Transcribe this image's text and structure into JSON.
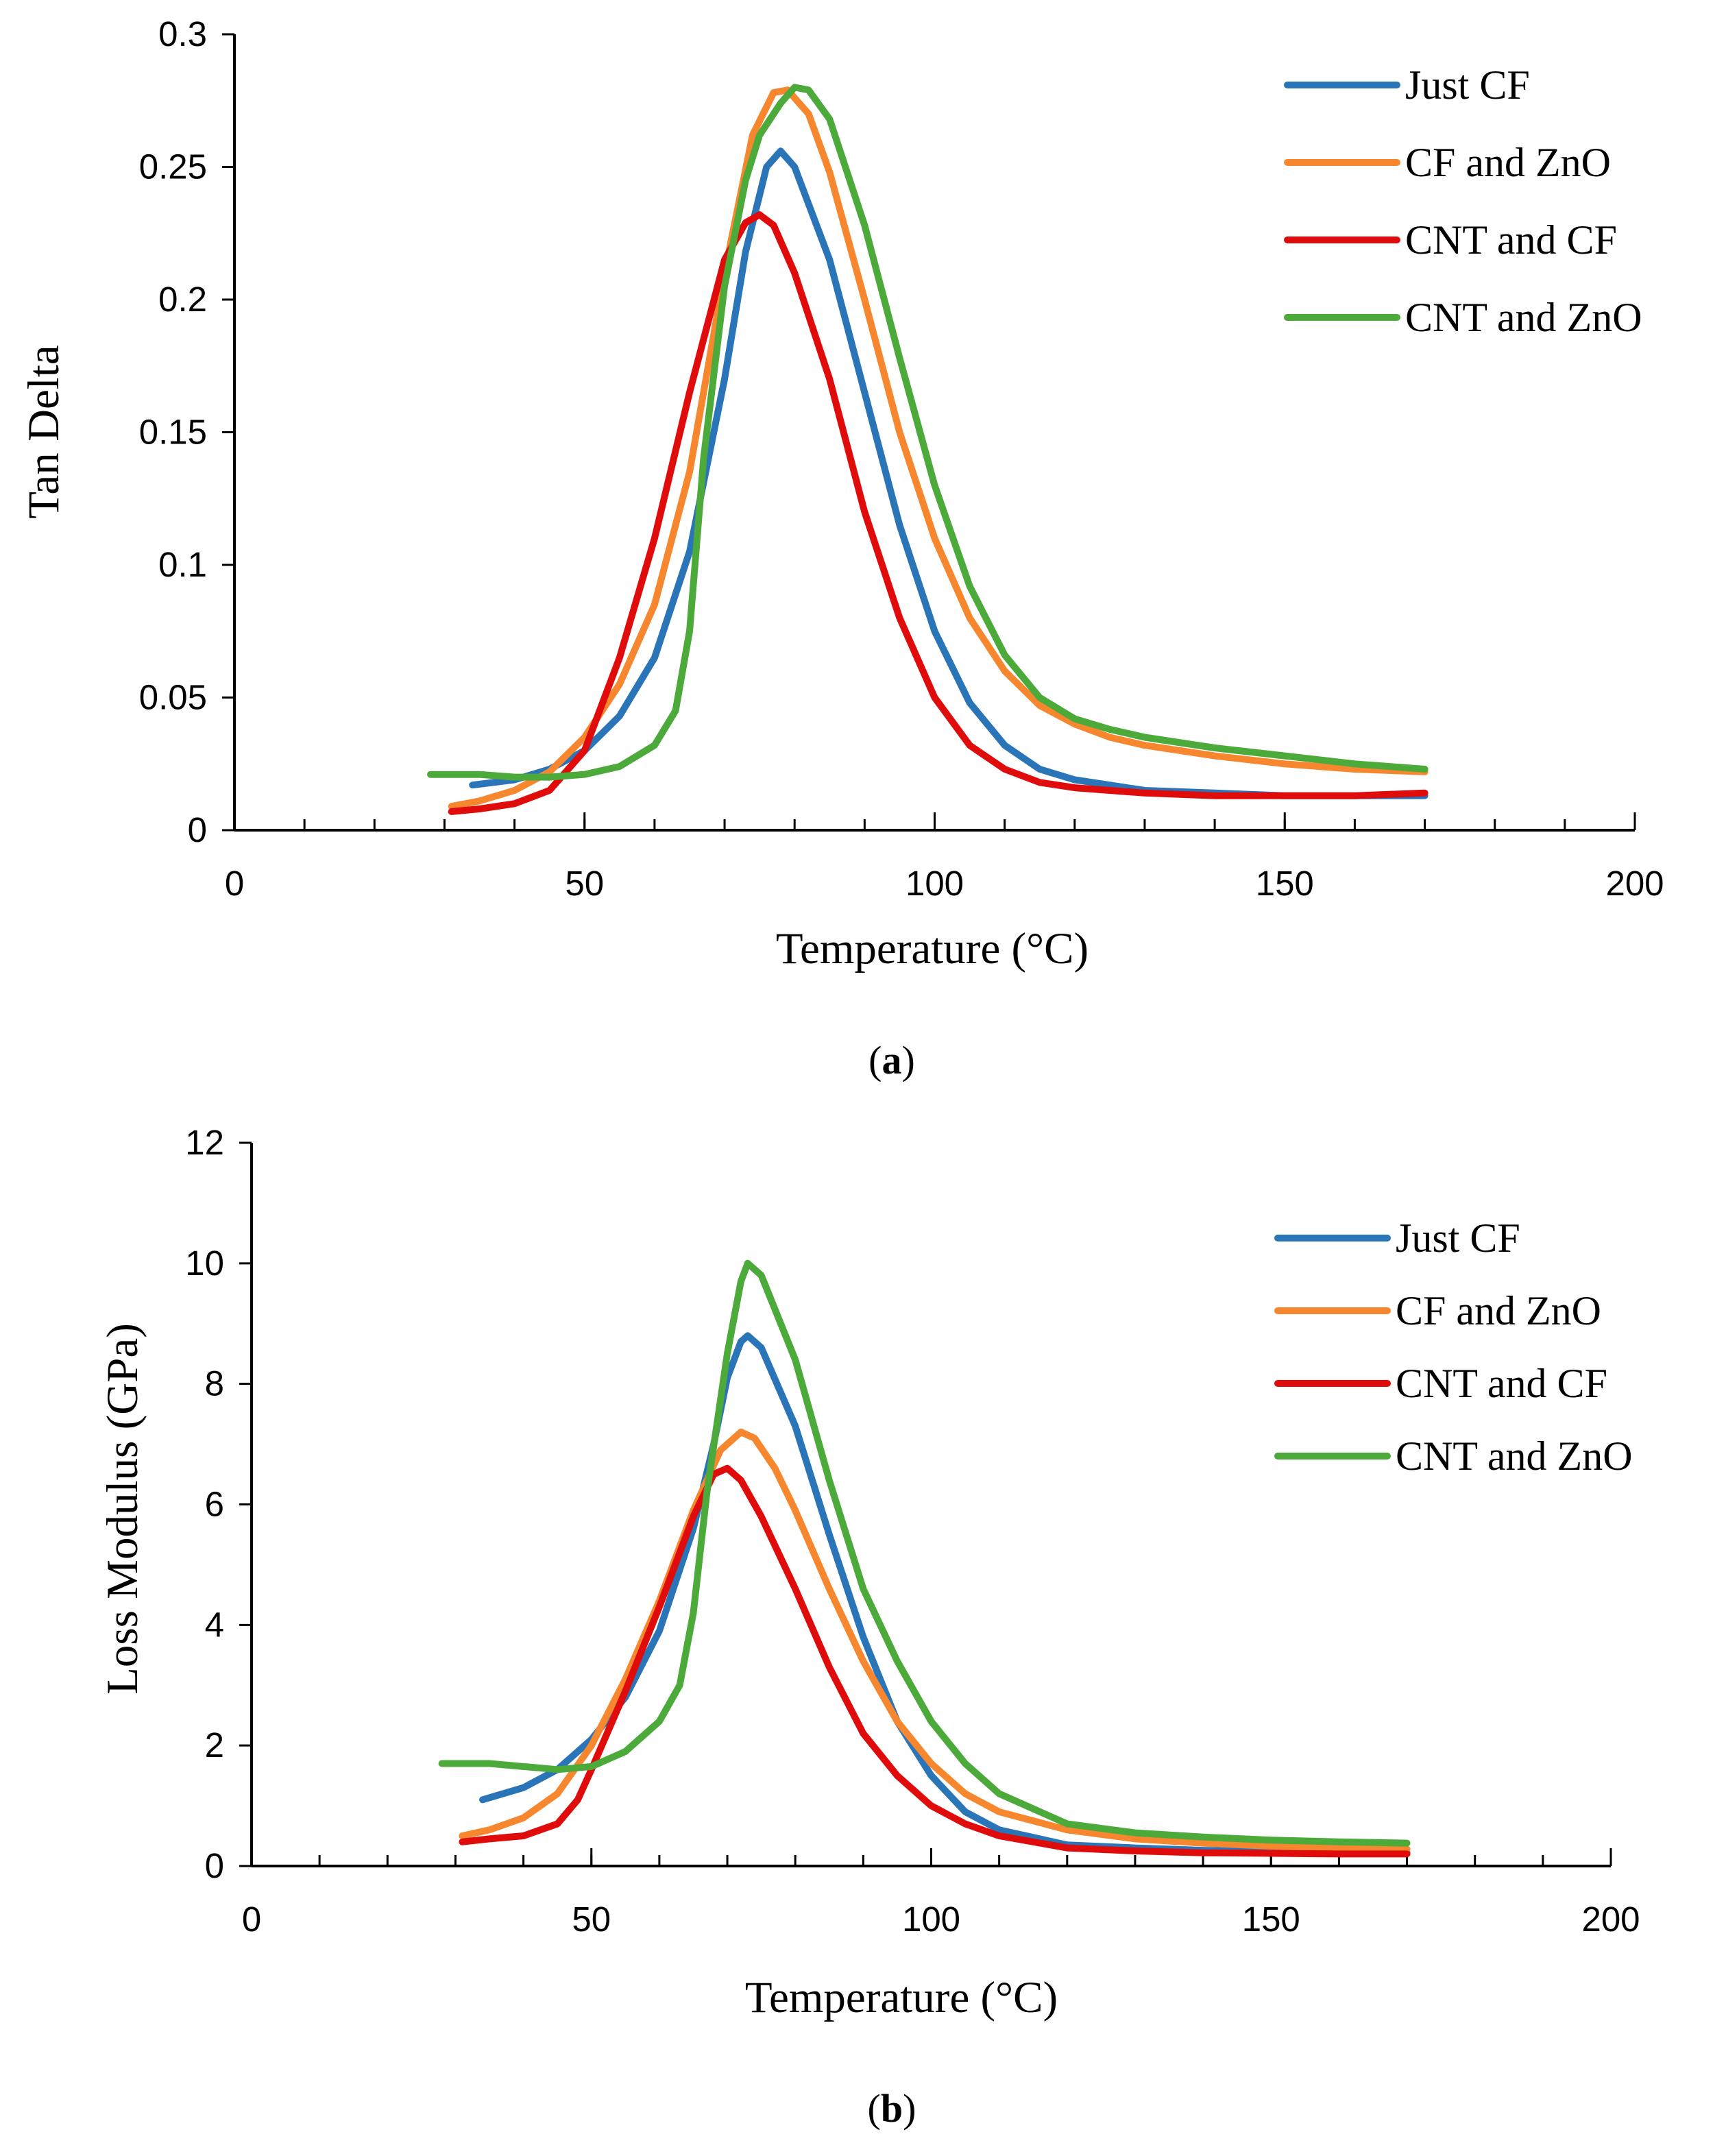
{
  "colors": {
    "just_cf": "#2A74B8",
    "cf_zno": "#F7872E",
    "cnt_cf": "#E00B0B",
    "cnt_zno": "#4CAA3B"
  },
  "chart_data": [
    {
      "type": "line",
      "panel": "a",
      "caption_open": "(",
      "caption_letter": "a",
      "caption_close": ")",
      "title": "",
      "xlabel": "Temperature (°C)",
      "ylabel": "Tan Delta",
      "xlim": [
        0,
        200
      ],
      "ylim": [
        0,
        0.3
      ],
      "xticks": [
        0,
        50,
        100,
        150,
        200
      ],
      "xtick_labels": [
        "0",
        "50",
        "100",
        "150",
        "200"
      ],
      "yticks": [
        0,
        0.05,
        0.1,
        0.15,
        0.2,
        0.25,
        0.3
      ],
      "ytick_labels": [
        "0",
        "0.05",
        "0.1",
        "0.15",
        "0.2",
        "0.25",
        "0.3"
      ],
      "grid": false,
      "legend": "top-right",
      "series": [
        {
          "name": "Just CF",
          "color_key": "just_cf",
          "x": [
            34,
            40,
            45,
            50,
            55,
            60,
            65,
            70,
            73,
            76,
            78,
            80,
            85,
            90,
            95,
            100,
            105,
            110,
            115,
            120,
            125,
            130,
            140,
            150,
            160,
            170
          ],
          "y": [
            0.017,
            0.019,
            0.023,
            0.03,
            0.043,
            0.065,
            0.105,
            0.17,
            0.218,
            0.25,
            0.256,
            0.25,
            0.215,
            0.165,
            0.115,
            0.075,
            0.048,
            0.032,
            0.023,
            0.019,
            0.017,
            0.015,
            0.014,
            0.013,
            0.013,
            0.013
          ]
        },
        {
          "name": "CF and ZnO",
          "color_key": "cf_zno",
          "x": [
            31,
            35,
            40,
            45,
            50,
            55,
            60,
            65,
            70,
            74,
            77,
            79,
            82,
            85,
            90,
            95,
            100,
            105,
            110,
            115,
            120,
            125,
            130,
            140,
            150,
            160,
            170
          ],
          "y": [
            0.009,
            0.011,
            0.015,
            0.022,
            0.035,
            0.055,
            0.085,
            0.135,
            0.21,
            0.262,
            0.278,
            0.279,
            0.27,
            0.248,
            0.2,
            0.15,
            0.11,
            0.08,
            0.06,
            0.047,
            0.04,
            0.035,
            0.032,
            0.028,
            0.025,
            0.023,
            0.022
          ]
        },
        {
          "name": "CNT and CF",
          "color_key": "cnt_cf",
          "x": [
            31,
            35,
            40,
            45,
            50,
            55,
            60,
            65,
            70,
            73,
            75,
            77,
            80,
            85,
            90,
            95,
            100,
            105,
            110,
            115,
            120,
            125,
            130,
            140,
            150,
            160,
            170
          ],
          "y": [
            0.007,
            0.008,
            0.01,
            0.015,
            0.03,
            0.065,
            0.11,
            0.165,
            0.215,
            0.229,
            0.232,
            0.228,
            0.21,
            0.17,
            0.12,
            0.08,
            0.05,
            0.032,
            0.023,
            0.018,
            0.016,
            0.015,
            0.014,
            0.013,
            0.013,
            0.013,
            0.014
          ]
        },
        {
          "name": "CNT and ZnO",
          "color_key": "cnt_zno",
          "x": [
            28,
            35,
            40,
            45,
            50,
            55,
            60,
            63,
            65,
            67,
            70,
            73,
            75,
            78,
            80,
            82,
            85,
            90,
            95,
            100,
            105,
            110,
            115,
            120,
            125,
            130,
            140,
            150,
            160,
            170
          ],
          "y": [
            0.021,
            0.021,
            0.02,
            0.02,
            0.021,
            0.024,
            0.032,
            0.045,
            0.075,
            0.14,
            0.205,
            0.245,
            0.262,
            0.274,
            0.28,
            0.279,
            0.268,
            0.228,
            0.178,
            0.13,
            0.092,
            0.066,
            0.05,
            0.042,
            0.038,
            0.035,
            0.031,
            0.028,
            0.025,
            0.023
          ]
        }
      ]
    },
    {
      "type": "line",
      "panel": "b",
      "caption_open": "(",
      "caption_letter": "b",
      "caption_close": ")",
      "title": "",
      "xlabel": "Temperature (°C)",
      "ylabel": "Loss Modulus (GPa)",
      "xlim": [
        0,
        200
      ],
      "ylim": [
        0,
        12
      ],
      "xticks": [
        0,
        50,
        100,
        150,
        200
      ],
      "xtick_labels": [
        "0",
        "50",
        "100",
        "150",
        "200"
      ],
      "yticks": [
        0,
        2,
        4,
        6,
        8,
        10,
        12
      ],
      "ytick_labels": [
        "0",
        "2",
        "4",
        "6",
        "8",
        "10",
        "12"
      ],
      "grid": false,
      "legend": "top-right",
      "series": [
        {
          "name": "Just CF",
          "color_key": "just_cf",
          "x": [
            34,
            40,
            45,
            50,
            55,
            60,
            65,
            68,
            70,
            72,
            73,
            75,
            80,
            85,
            90,
            95,
            100,
            105,
            110,
            120,
            130,
            140,
            150,
            160,
            170
          ],
          "y": [
            1.1,
            1.3,
            1.6,
            2.1,
            2.8,
            3.9,
            5.6,
            7.0,
            8.1,
            8.7,
            8.8,
            8.6,
            7.3,
            5.5,
            3.8,
            2.4,
            1.5,
            0.9,
            0.6,
            0.35,
            0.3,
            0.26,
            0.24,
            0.23,
            0.22
          ]
        },
        {
          "name": "CF and ZnO",
          "color_key": "cf_zno",
          "x": [
            31,
            35,
            40,
            45,
            50,
            55,
            60,
            65,
            69,
            72,
            74,
            77,
            80,
            85,
            90,
            95,
            100,
            105,
            110,
            120,
            130,
            140,
            150,
            160,
            170
          ],
          "y": [
            0.5,
            0.6,
            0.8,
            1.2,
            2.0,
            3.1,
            4.4,
            5.9,
            6.9,
            7.2,
            7.1,
            6.6,
            5.9,
            4.6,
            3.4,
            2.4,
            1.7,
            1.2,
            0.9,
            0.6,
            0.45,
            0.38,
            0.33,
            0.3,
            0.28
          ]
        },
        {
          "name": "CNT and CF",
          "color_key": "cnt_cf",
          "x": [
            31,
            35,
            40,
            45,
            48,
            50,
            55,
            60,
            65,
            68,
            70,
            72,
            75,
            80,
            85,
            90,
            95,
            100,
            105,
            110,
            120,
            130,
            140,
            150,
            160,
            170
          ],
          "y": [
            0.4,
            0.45,
            0.5,
            0.7,
            1.1,
            1.6,
            2.9,
            4.3,
            5.8,
            6.5,
            6.6,
            6.4,
            5.8,
            4.6,
            3.3,
            2.2,
            1.5,
            1.0,
            0.7,
            0.5,
            0.3,
            0.25,
            0.22,
            0.21,
            0.2,
            0.2
          ]
        },
        {
          "name": "CNT and ZnO",
          "color_key": "cnt_zno",
          "x": [
            28,
            35,
            40,
            45,
            50,
            55,
            60,
            63,
            65,
            67,
            70,
            72,
            73,
            75,
            80,
            85,
            90,
            95,
            100,
            105,
            110,
            120,
            130,
            140,
            150,
            160,
            170
          ],
          "y": [
            1.7,
            1.7,
            1.65,
            1.6,
            1.65,
            1.9,
            2.4,
            3.0,
            4.2,
            6.2,
            8.5,
            9.7,
            10.0,
            9.8,
            8.4,
            6.4,
            4.6,
            3.4,
            2.4,
            1.7,
            1.2,
            0.7,
            0.55,
            0.48,
            0.43,
            0.4,
            0.38
          ]
        }
      ]
    }
  ]
}
